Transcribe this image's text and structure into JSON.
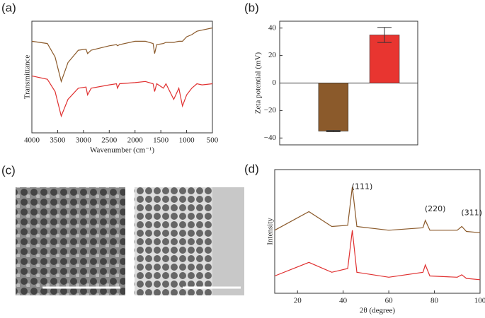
{
  "chart_data": [
    {
      "type": "line",
      "label": "(a)",
      "xlabel": "Wavenumber (cm⁻¹)",
      "ylabel": "Transmittance",
      "x": [
        4000,
        3700,
        3550,
        3430,
        3300,
        3100,
        2950,
        2920,
        2850,
        2500,
        2360,
        2340,
        2300,
        2000,
        1800,
        1650,
        1620,
        1580,
        1450,
        1400,
        1250,
        1150,
        1080,
        1000,
        900,
        800,
        700,
        500
      ],
      "series": [
        {
          "color": "#8b5a2b",
          "values": [
            82,
            80,
            68,
            46,
            63,
            74,
            75,
            71,
            74,
            78,
            79,
            78,
            79,
            82,
            82,
            80,
            71,
            79,
            80,
            81,
            81,
            82,
            82,
            86,
            88,
            91,
            92,
            94
          ]
        },
        {
          "color": "#e03030",
          "values": [
            51,
            48,
            37,
            15,
            30,
            40,
            41,
            34,
            40,
            43,
            44,
            40,
            44,
            45,
            46,
            44,
            37,
            44,
            40,
            44,
            30,
            40,
            24,
            34,
            40,
            44,
            43,
            44
          ]
        }
      ],
      "xlim": [
        4000,
        500
      ],
      "xticks": [
        4000,
        3500,
        3000,
        2500,
        2000,
        1500,
        1000,
        500
      ],
      "ylim": [
        0,
        100
      ]
    },
    {
      "type": "bar",
      "label": "(b)",
      "ylabel": "Zeta potential (mV)",
      "categories": [
        null,
        null
      ],
      "values": [
        -35,
        35
      ],
      "errors": [
        0.5,
        5.5
      ],
      "colors": [
        "#8b5a2b",
        "#e83530"
      ],
      "ylim": [
        -45,
        45
      ],
      "yticks": [
        {
          "value": -40,
          "label": "−40"
        },
        {
          "value": -20,
          "label": "−20"
        },
        0,
        20,
        40
      ]
    },
    {
      "type": "line",
      "label": "(d)",
      "xlabel": "2θ (degree)",
      "ylabel": "Intensity",
      "x": [
        10,
        25,
        35,
        42,
        44,
        46,
        60,
        75,
        76,
        78,
        90,
        92,
        94,
        100
      ],
      "series": [
        {
          "color": "#8b5a2b",
          "values": [
            51,
            66,
            54,
            55,
            86,
            54,
            51,
            53,
            59,
            51,
            51,
            54,
            50,
            49
          ]
        },
        {
          "color": "#e03030",
          "values": [
            14,
            25,
            17,
            20,
            51,
            17,
            13,
            17,
            23,
            14,
            13,
            15,
            12,
            11
          ]
        }
      ],
      "xlim": [
        10,
        100
      ],
      "xticks": [
        20,
        40,
        60,
        80,
        100
      ],
      "ylim": [
        0,
        100
      ],
      "annotations": [
        {
          "text": "(111)",
          "x": 44,
          "y": 86
        },
        {
          "text": "(220)",
          "x": 76,
          "y": 68
        },
        {
          "text": "(311)",
          "x": 92,
          "y": 65
        }
      ]
    }
  ],
  "image_panel": {
    "label": "(c)"
  }
}
